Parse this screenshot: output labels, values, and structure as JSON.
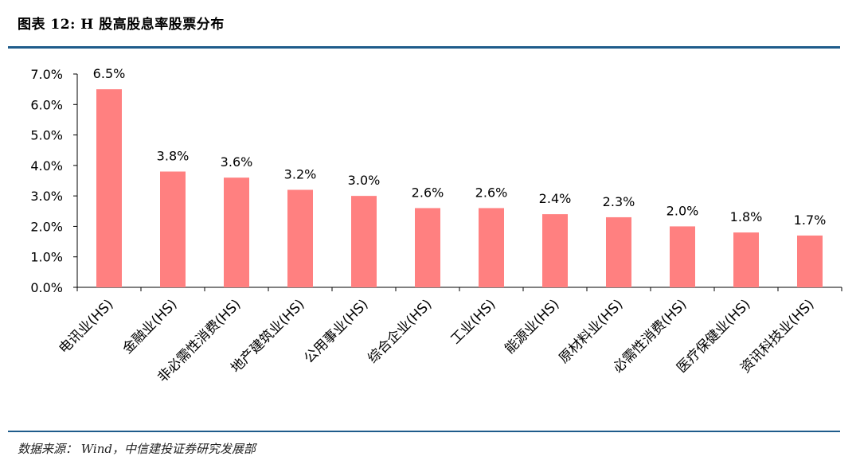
{
  "header": {
    "title": "图表  12: H 股高股息率股票分布"
  },
  "footer": {
    "source": "数据来源：  Wind，中信建投证券研究发展部"
  },
  "colors": {
    "bar": "#ff8080",
    "rule": "#1f5c8b",
    "axis": "#000000"
  },
  "chart_data": {
    "type": "bar",
    "categories": [
      "电讯业(HS)",
      "金融业(HS)",
      "非必需性消费(HS)",
      "地产建筑业(HS)",
      "公用事业(HS)",
      "综合企业(HS)",
      "工业(HS)",
      "能源业(HS)",
      "原材料业(HS)",
      "必需性消费(HS)",
      "医疗保健业(HS)",
      "资讯科技业(HS)"
    ],
    "values": [
      6.5,
      3.8,
      3.6,
      3.2,
      3.0,
      2.6,
      2.6,
      2.4,
      2.3,
      2.0,
      1.8,
      1.7
    ],
    "data_labels": [
      "6.5%",
      "3.8%",
      "3.6%",
      "3.2%",
      "3.0%",
      "2.6%",
      "2.6%",
      "2.4%",
      "2.3%",
      "2.0%",
      "1.8%",
      "1.7%"
    ],
    "yticks": [
      "0.0%",
      "1.0%",
      "2.0%",
      "3.0%",
      "4.0%",
      "5.0%",
      "6.0%",
      "7.0%"
    ],
    "ylim": [
      0,
      7
    ],
    "xlabel": "",
    "ylabel": "",
    "grid": false
  }
}
